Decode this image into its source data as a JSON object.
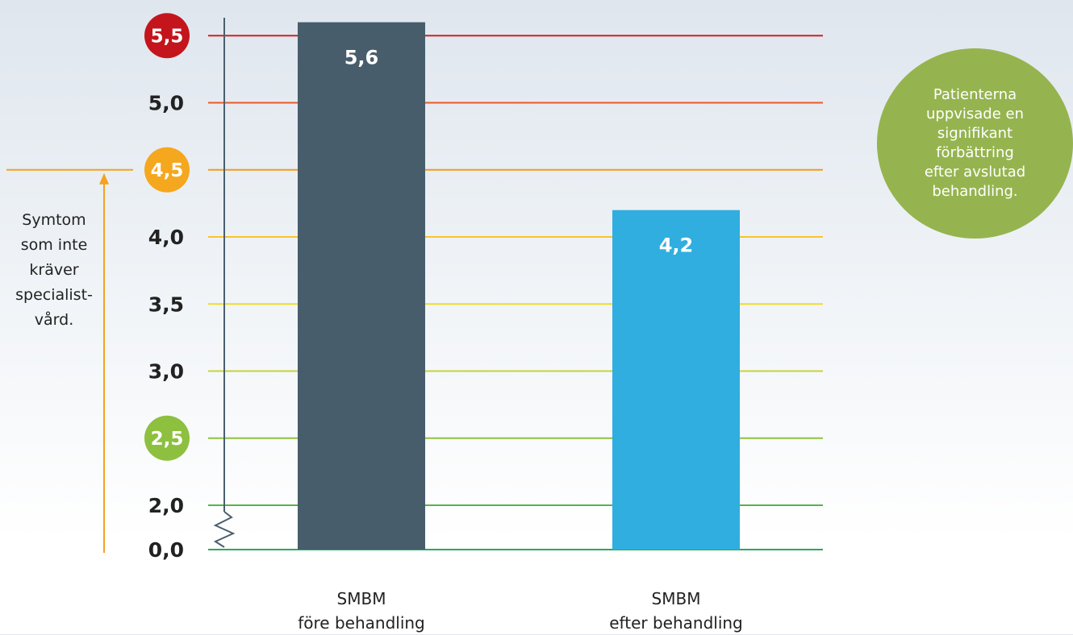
{
  "chart_data": {
    "type": "bar",
    "categories": [
      "SMBM\nföre behandling",
      "SMBM\nefter behandling"
    ],
    "category_lines": [
      [
        "SMBM",
        "före behandling"
      ],
      [
        "SMBM",
        "efter behandling"
      ]
    ],
    "values": [
      5.6,
      4.2
    ],
    "value_labels": [
      "5,6",
      "4,2"
    ],
    "bar_colors": [
      "#475d6c",
      "#30aee0"
    ],
    "y_ticks": [
      {
        "value": 0.0,
        "label": "0,0",
        "line_color": "#2aa760",
        "badge": null
      },
      {
        "value": 2.0,
        "label": "2,0",
        "line_color": "#55b547",
        "badge": null
      },
      {
        "value": 2.5,
        "label": "2,5",
        "line_color": "#8fc13e",
        "badge": "#8dc03f"
      },
      {
        "value": 3.0,
        "label": "3,0",
        "line_color": "#c8d43a",
        "badge": null
      },
      {
        "value": 3.5,
        "label": "3,5",
        "line_color": "#eedd26",
        "badge": null
      },
      {
        "value": 4.0,
        "label": "4,0",
        "line_color": "#f7c52a",
        "badge": null
      },
      {
        "value": 4.5,
        "label": "4,5",
        "line_color": "#f39a22",
        "badge": "#f5a71e"
      },
      {
        "value": 5.0,
        "label": "5,0",
        "line_color": "#ec5a27",
        "badge": null
      },
      {
        "value": 5.5,
        "label": "5,5",
        "line_color": "#cf2027",
        "badge": "#c4151c"
      }
    ],
    "axis_break": true,
    "ylim": [
      0,
      5.6
    ],
    "annotation_threshold": {
      "value": 4.5,
      "color": "#f5a21e"
    },
    "title": "",
    "xlabel": "",
    "ylabel": ""
  },
  "annotations": {
    "side_note": [
      "Symtom",
      "som inte",
      "kräver",
      "specialist-",
      "vård."
    ],
    "bubble": [
      "Patienterna",
      "uppvisade en",
      "signifikant förbättring",
      "efter avslutad",
      "behandling."
    ]
  }
}
